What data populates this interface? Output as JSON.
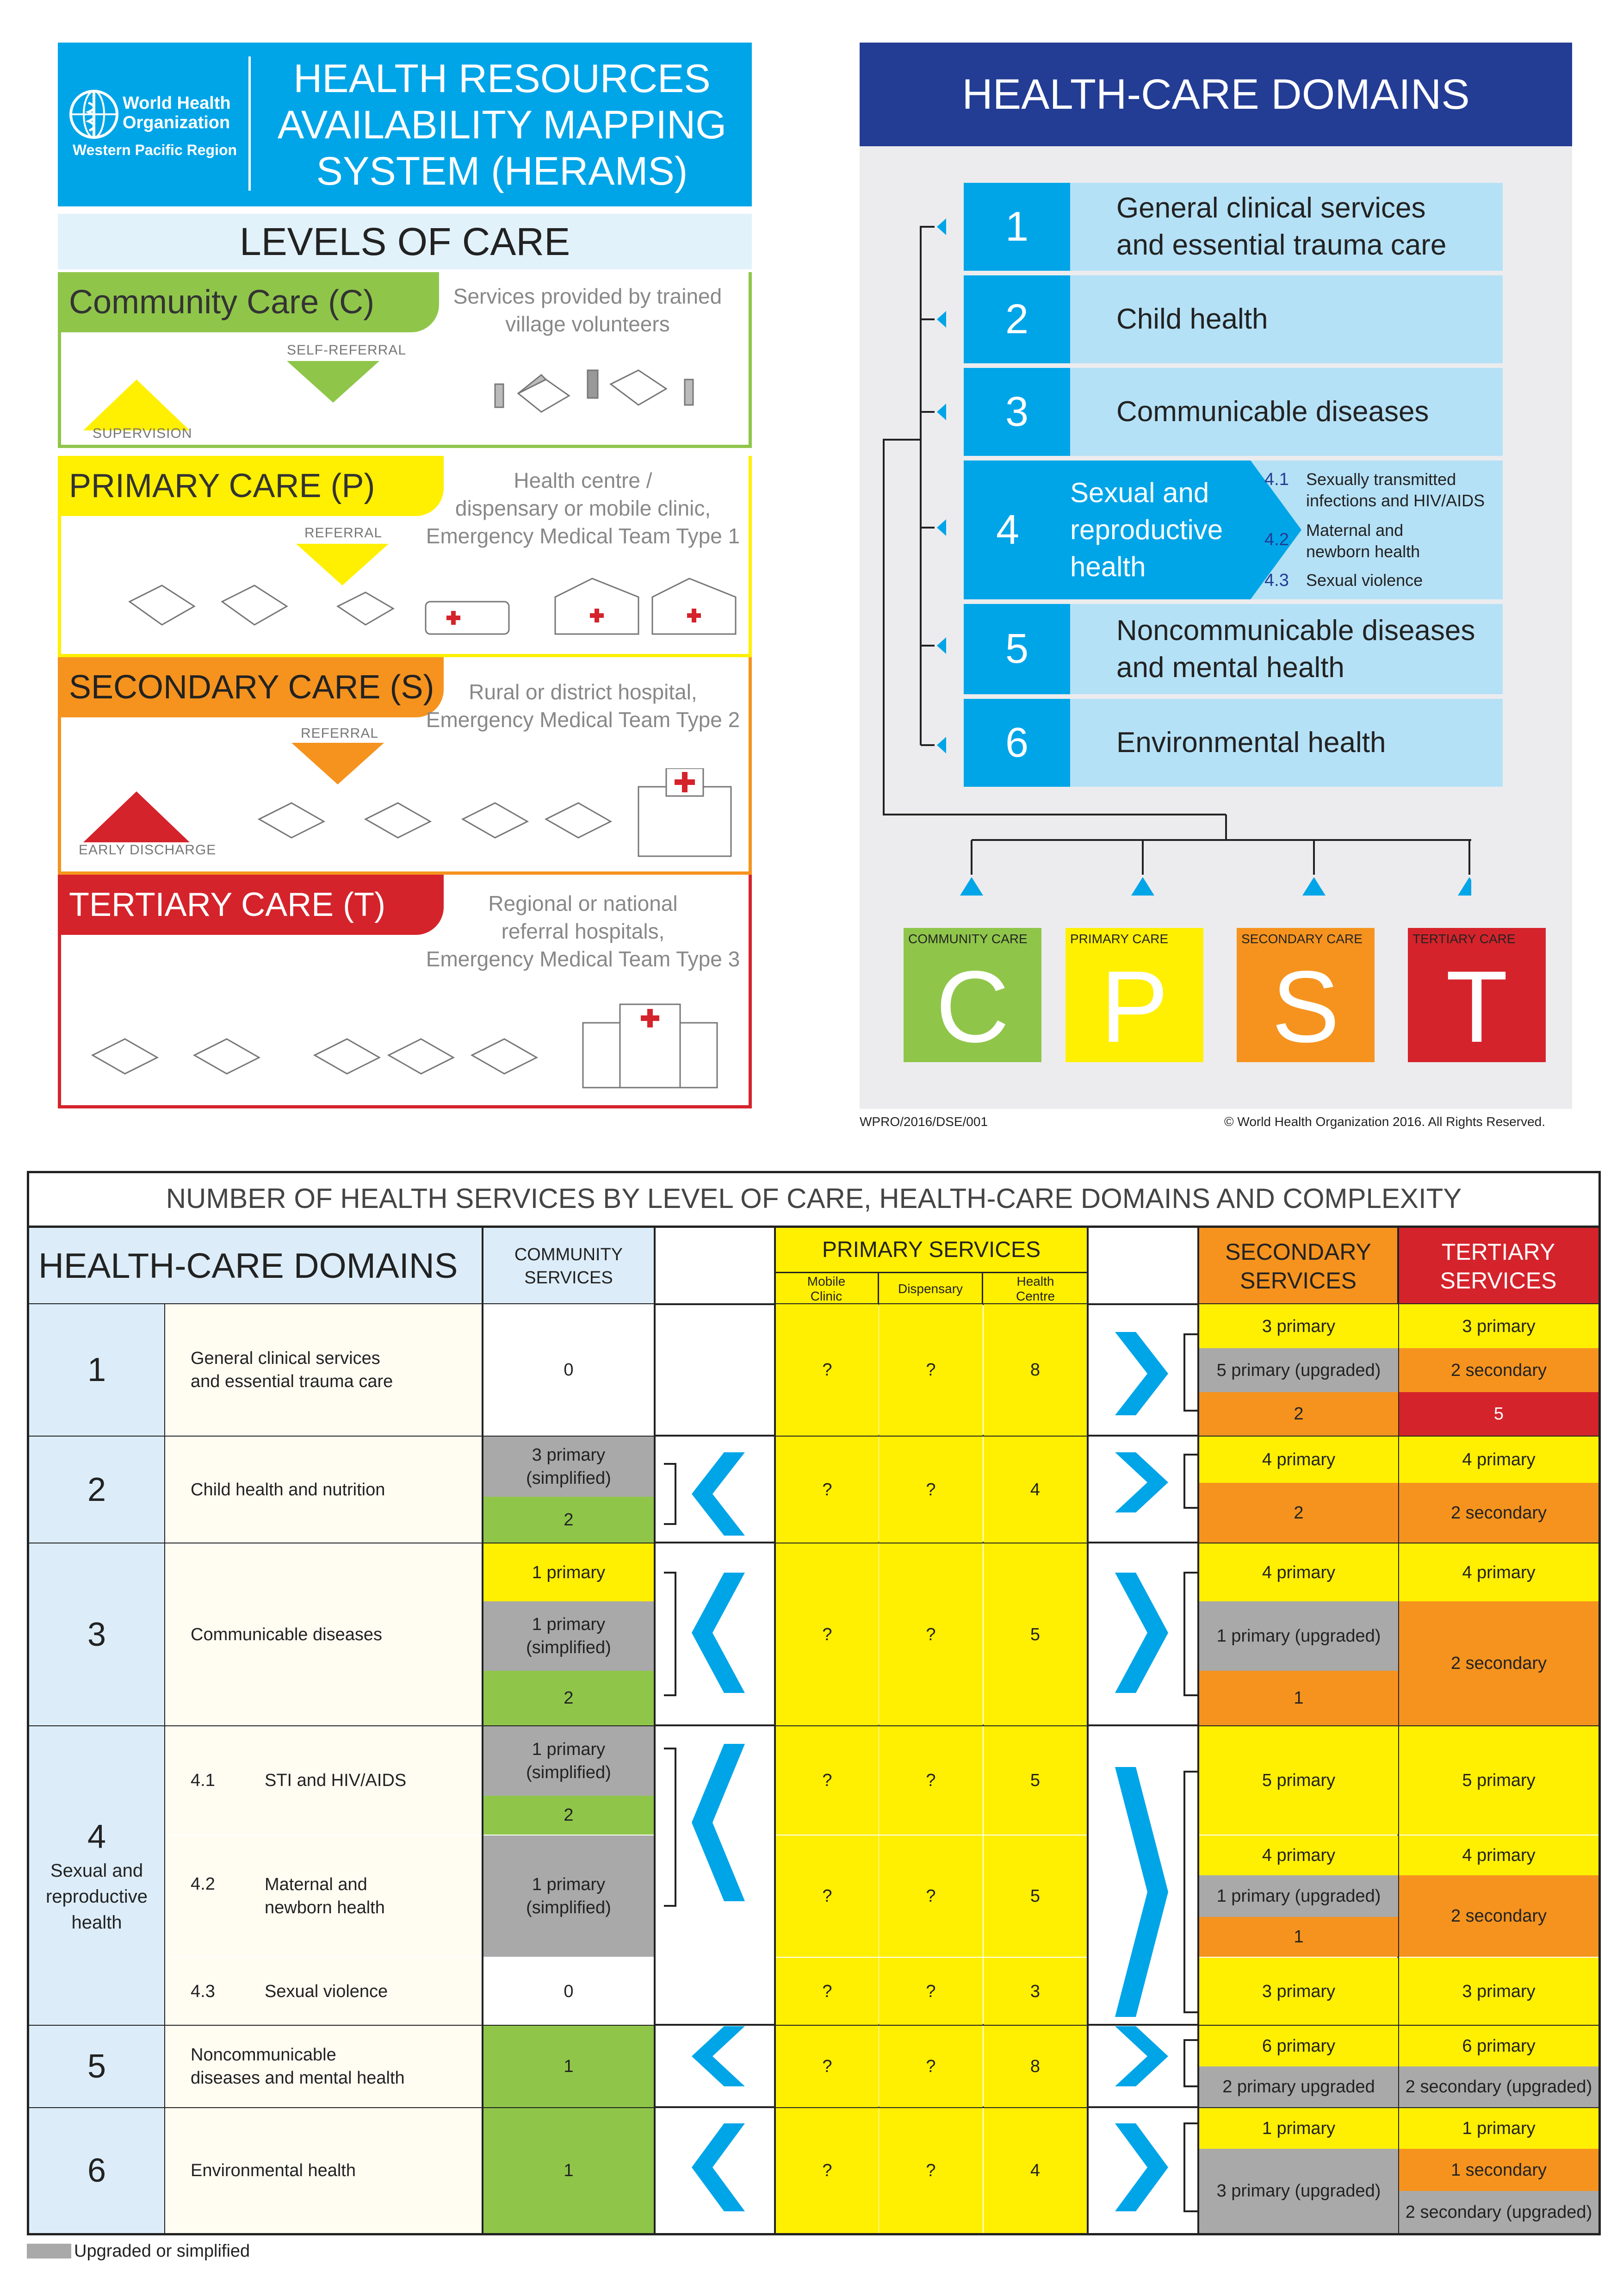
{
  "colors": {
    "who_blue": "#00a5e8",
    "navy": "#233c94",
    "community": "#8fc64a",
    "primary": "#ffef00",
    "secondary": "#f5931e",
    "tertiary": "#d5232b",
    "upgraded_grey": "#a9a9a9",
    "light_blue": "#b5e1f6"
  },
  "who": {
    "logo_line1": "World Health",
    "logo_line2": "Organization",
    "logo_line3": "Western Pacific Region",
    "logo_icon": "who-emblem-icon",
    "title": "HEALTH RESOURCES\nAVAILABILITY MAPPING\nSYSTEM (HERAMS)"
  },
  "levels": {
    "heading": "LEVELS OF CARE",
    "community": {
      "label": "Community Care (C)",
      "desc": "Services provided by trained\nvillage volunteers",
      "arrow": "SELF-REFERRAL"
    },
    "supervision": "SUPERVISION",
    "primary": {
      "label": "PRIMARY CARE (P)",
      "desc": "Health centre /\ndispensary or mobile clinic,\nEmergency Medical Team Type 1",
      "arrow": "REFERRAL"
    },
    "secondary": {
      "label": "SECONDARY CARE (S)",
      "desc": "Rural or district hospital,\nEmergency Medical Team Type 2",
      "arrow": "REFERRAL"
    },
    "early_discharge": "EARLY DISCHARGE",
    "tertiary": {
      "label": "TERTIARY CARE (T)",
      "desc": "Regional or national\nreferral hospitals,\nEmergency Medical Team Type 3"
    }
  },
  "domains_panel": {
    "title": "HEALTH-CARE DOMAINS",
    "items": [
      {
        "num": "1",
        "label": "General clinical services\nand essential trauma care"
      },
      {
        "num": "2",
        "label": "Child health"
      },
      {
        "num": "3",
        "label": "Communicable diseases"
      },
      {
        "num": "4",
        "label": "Sexual and\nreproductive\nhealth",
        "subs": [
          {
            "num": "4.1",
            "label": "Sexually transmitted\ninfections and HIV/AIDS"
          },
          {
            "num": "4.2",
            "label": "Maternal and\nnewborn health"
          },
          {
            "num": "4.3",
            "label": "Sexual violence"
          }
        ]
      },
      {
        "num": "5",
        "label": "Noncommunicable diseases\nand  mental health"
      },
      {
        "num": "6",
        "label": "Environmental health"
      }
    ],
    "levels": [
      {
        "caption": "COMMUNITY CARE",
        "letter": "C"
      },
      {
        "caption": "PRIMARY CARE",
        "letter": "P"
      },
      {
        "caption": "SECONDARY CARE",
        "letter": "S"
      },
      {
        "caption": "TERTIARY CARE",
        "letter": "T"
      }
    ],
    "doc_code": "WPRO/2016/DSE/001",
    "copyright": "© World Health Organization 2016. All Rights Reserved."
  },
  "table": {
    "title": "NUMBER OF HEALTH SERVICES BY LEVEL OF CARE, HEALTH-CARE DOMAINS AND COMPLEXITY",
    "head_domains": "HEALTH-CARE DOMAINS",
    "head_community": "COMMUNITY\nSERVICES",
    "head_primary": "PRIMARY SERVICES",
    "head_mobile": "Mobile\nClinic",
    "head_dispensary": "Dispensary",
    "head_health_centre": "Health\nCentre",
    "head_secondary": "SECONDARY\nSERVICES",
    "head_tertiary": "TERTIARY\nSERVICES",
    "d1": {
      "num": "1",
      "label": "General clinical services\nand essential trauma care",
      "community": "0",
      "mobile": "?",
      "disp": "?",
      "hc": "8",
      "sec": [
        "3 primary",
        "5 primary (upgraded)",
        "2"
      ],
      "ter": [
        "3 primary",
        "2 secondary",
        "5"
      ]
    },
    "d2": {
      "num": "2",
      "label": "Child health and nutrition",
      "community": [
        "3 primary\n(simplified)",
        "2"
      ],
      "mobile": "?",
      "disp": "?",
      "hc": "4",
      "sec": [
        "4 primary",
        "2"
      ],
      "ter": [
        "4 primary",
        "2 secondary"
      ]
    },
    "d3": {
      "num": "3",
      "label": "Communicable diseases",
      "community": [
        "1 primary",
        "1 primary\n(simplified)",
        "2"
      ],
      "mobile": "?",
      "disp": "?",
      "hc": "5",
      "sec": [
        "4 primary",
        "1 primary   (upgraded)",
        "1"
      ],
      "ter": [
        "4 primary",
        "2 secondary"
      ]
    },
    "d4": {
      "num": "4",
      "label": "Sexual and\nreproductive\nhealth",
      "s41": {
        "num": "4.1",
        "label": "STI and HIV/AIDS",
        "community": [
          "1 primary\n(simplified)",
          "2"
        ],
        "mobile": "?",
        "disp": "?",
        "hc": "5",
        "sec": "5 primary",
        "ter": "5 primary"
      },
      "s42": {
        "num": "4.2",
        "label": "Maternal and\nnewborn health",
        "community": "1 primary\n(simplified)",
        "mobile": "?",
        "disp": "?",
        "hc": "5",
        "sec": [
          "4 primary",
          "1 primary   (upgraded)",
          "1"
        ],
        "ter": [
          "4 primary",
          "2 secondary"
        ]
      },
      "s43": {
        "num": "4.3",
        "label": "Sexual violence",
        "community": "0",
        "mobile": "?",
        "disp": "?",
        "hc": "3",
        "sec": "3 primary",
        "ter": "3 primary"
      }
    },
    "d5": {
      "num": "5",
      "label": "Noncommunicable\ndiseases and mental health",
      "community": "1",
      "mobile": "?",
      "disp": "?",
      "hc": "8",
      "sec": [
        "6 primary",
        "2 primary upgraded"
      ],
      "ter": [
        "6 primary",
        "2 secondary   (upgraded)"
      ]
    },
    "d6": {
      "num": "6",
      "label": "Environmental health",
      "community": "1",
      "mobile": "?",
      "disp": "?",
      "hc": "4",
      "sec": [
        "1 primary",
        "3 primary   (upgraded)"
      ],
      "ter": [
        "1 primary",
        "1 secondary",
        "2 secondary   (upgraded)"
      ]
    },
    "legend": "Upgraded or simplified"
  }
}
